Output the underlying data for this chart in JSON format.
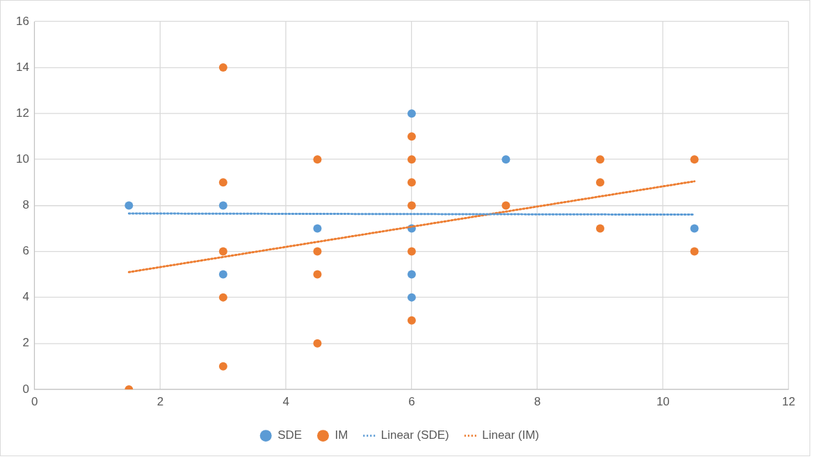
{
  "chart_data": {
    "type": "scatter",
    "xlim": [
      0,
      12
    ],
    "xticks": [
      0,
      2,
      4,
      6,
      8,
      10,
      12
    ],
    "ylim": [
      0,
      16
    ],
    "yticks": [
      0,
      2,
      4,
      6,
      8,
      10,
      12,
      14,
      16
    ],
    "grid": true,
    "legend": "bottom",
    "marker": "circle",
    "series": [
      {
        "name": "SDE",
        "color": "#5b9bd5",
        "x": [
          1.5,
          3,
          3,
          4.5,
          6,
          6,
          6,
          6,
          7.5,
          10.5
        ],
        "values": [
          8,
          8,
          5,
          7,
          12,
          7,
          5,
          4,
          10,
          7
        ]
      },
      {
        "name": "IM",
        "color": "#ed7d31",
        "x": [
          1.5,
          3,
          3,
          3,
          3,
          3,
          4.5,
          4.5,
          4.5,
          4.5,
          6,
          6,
          6,
          6,
          6,
          6,
          7.5,
          9,
          9,
          9,
          10.5,
          10.5
        ],
        "values": [
          0,
          14,
          9,
          6,
          4,
          1,
          10,
          6,
          5,
          2,
          11,
          10,
          9,
          8,
          6,
          3,
          8,
          10,
          9,
          7,
          10,
          6
        ]
      },
      {
        "name": "Linear (SDE)",
        "type": "line",
        "line_style": "dotted",
        "marker": "none",
        "color": "#5b9bd5",
        "x": [
          1.5,
          10.5
        ],
        "values": [
          7.65,
          7.6
        ]
      },
      {
        "name": "Linear (IM)",
        "type": "line",
        "line_style": "dotted",
        "marker": "none",
        "color": "#ed7d31",
        "x": [
          1.5,
          10.5
        ],
        "values": [
          5.1,
          9.05
        ]
      }
    ]
  }
}
